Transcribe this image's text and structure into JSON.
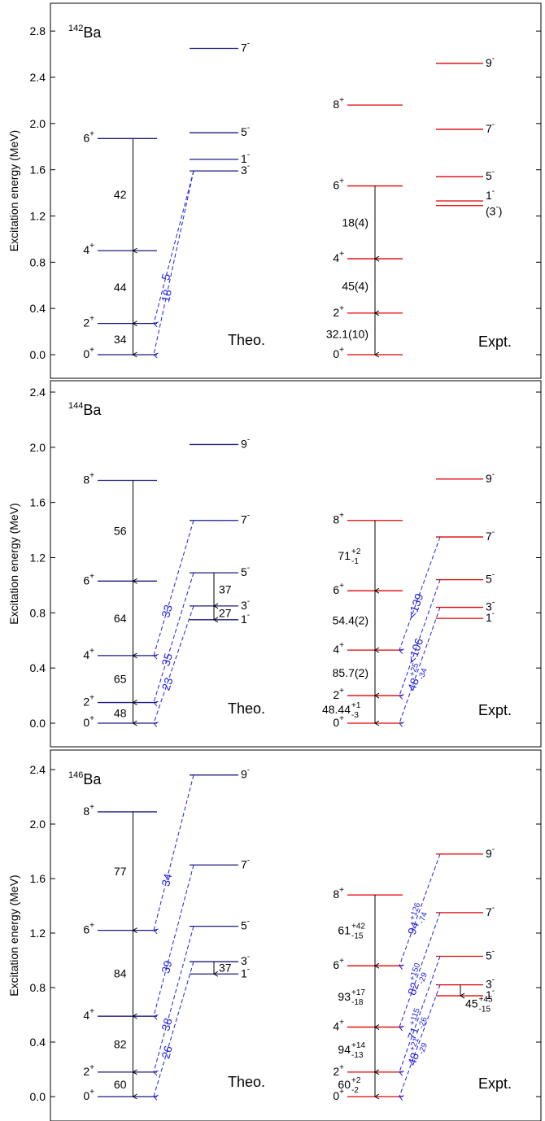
{
  "colors": {
    "theo": "#1a1a80",
    "expt": "#e00000",
    "e1": "#1f1fe0",
    "e2": "#000000",
    "frame": "#000000"
  },
  "chart_data": [
    {
      "type": "level-scheme",
      "nucleus": {
        "mass": "142",
        "symbol": "Ba"
      },
      "ylabel": "Excitation energy (MeV)",
      "ylim": [
        -0.12,
        2.98
      ],
      "yticks": [
        "0.0",
        "0.4",
        "0.8",
        "1.2",
        "1.6",
        "2.0",
        "2.4",
        "2.8"
      ],
      "ytick_values": [
        0.0,
        0.4,
        0.8,
        1.2,
        1.6,
        2.0,
        2.4,
        2.8
      ],
      "theo_label": "Theo.",
      "expt_label": "Expt.",
      "theo": {
        "positive": [
          {
            "E": 0.0,
            "J": "0",
            "p": "+"
          },
          {
            "E": 0.27,
            "J": "2",
            "p": "+"
          },
          {
            "E": 0.9,
            "J": "4",
            "p": "+"
          },
          {
            "E": 1.87,
            "J": "6",
            "p": "+"
          }
        ],
        "negative": [
          {
            "E": 1.59,
            "J": "3",
            "p": "-"
          },
          {
            "E": 1.69,
            "J": "1",
            "p": "-"
          },
          {
            "E": 1.92,
            "J": "5",
            "p": "-"
          },
          {
            "E": 2.65,
            "J": "7",
            "p": "-"
          }
        ],
        "e2": [
          {
            "from": 0.27,
            "to": 0.0,
            "label": "34"
          },
          {
            "from": 0.9,
            "to": 0.27,
            "label": "44"
          },
          {
            "from": 1.87,
            "to": 0.9,
            "label": "42"
          }
        ],
        "e1": [
          {
            "from": 1.59,
            "to": 0.27,
            "label": "5"
          },
          {
            "from": 1.59,
            "to": 0.0,
            "label": "18"
          }
        ],
        "e2neg": []
      },
      "expt": {
        "positive": [
          {
            "E": 0.0,
            "J": "0",
            "p": "+"
          },
          {
            "E": 0.36,
            "J": "2",
            "p": "+"
          },
          {
            "E": 0.83,
            "J": "4",
            "p": "+"
          },
          {
            "E": 1.46,
            "J": "6",
            "p": "+"
          },
          {
            "E": 2.16,
            "J": "8",
            "p": "+"
          }
        ],
        "negative": [
          {
            "E": 1.29,
            "J": "(3",
            "p": "-",
            "suffix": ")"
          },
          {
            "E": 1.33,
            "J": "1",
            "p": "-"
          },
          {
            "E": 1.54,
            "J": "5",
            "p": "-"
          },
          {
            "E": 1.95,
            "J": "7",
            "p": "-"
          },
          {
            "E": 2.52,
            "J": "9",
            "p": "-"
          }
        ],
        "e2": [
          {
            "from": 0.36,
            "to": 0.0,
            "label": "32.1(10)"
          },
          {
            "from": 0.83,
            "to": 0.36,
            "label": "45(4)"
          },
          {
            "from": 1.46,
            "to": 0.83,
            "label": "18(4)"
          }
        ],
        "e1": [],
        "e2neg": []
      }
    },
    {
      "type": "level-scheme",
      "nucleus": {
        "mass": "144",
        "symbol": "Ba"
      },
      "ylabel": "Excitation energy (MeV)",
      "ylim": [
        -0.13,
        2.48
      ],
      "yticks": [
        "0.0",
        "0.4",
        "0.8",
        "1.2",
        "1.6",
        "2.0",
        "2.4"
      ],
      "ytick_values": [
        0.0,
        0.4,
        0.8,
        1.2,
        1.6,
        2.0,
        2.4
      ],
      "theo_label": "Theo.",
      "expt_label": "Expt.",
      "theo": {
        "positive": [
          {
            "E": 0.0,
            "J": "0",
            "p": "+"
          },
          {
            "E": 0.15,
            "J": "2",
            "p": "+"
          },
          {
            "E": 0.49,
            "J": "4",
            "p": "+"
          },
          {
            "E": 1.03,
            "J": "6",
            "p": "+"
          },
          {
            "E": 1.76,
            "J": "8",
            "p": "+"
          }
        ],
        "negative": [
          {
            "E": 0.75,
            "J": "1",
            "p": "-"
          },
          {
            "E": 0.85,
            "J": "3",
            "p": "-"
          },
          {
            "E": 1.09,
            "J": "5",
            "p": "-"
          },
          {
            "E": 1.47,
            "J": "7",
            "p": "-"
          },
          {
            "E": 2.02,
            "J": "9",
            "p": "-"
          }
        ],
        "e2": [
          {
            "from": 0.15,
            "to": 0.0,
            "label": "48"
          },
          {
            "from": 0.49,
            "to": 0.15,
            "label": "65"
          },
          {
            "from": 1.03,
            "to": 0.49,
            "label": "64"
          },
          {
            "from": 1.76,
            "to": 1.03,
            "label": "56"
          }
        ],
        "e1": [
          {
            "from": 1.47,
            "to": 0.49,
            "label": "33"
          },
          {
            "from": 1.09,
            "to": 0.15,
            "label": "35"
          },
          {
            "from": 0.85,
            "to": 0.0,
            "label": "23"
          }
        ],
        "e2neg": [
          {
            "from": 1.09,
            "to": 0.85,
            "label": "37"
          },
          {
            "from": 0.85,
            "to": 0.75,
            "label": "27"
          }
        ]
      },
      "expt": {
        "positive": [
          {
            "E": 0.0,
            "J": "0",
            "p": "+"
          },
          {
            "E": 0.2,
            "J": "2",
            "p": "+"
          },
          {
            "E": 0.53,
            "J": "4",
            "p": "+"
          },
          {
            "E": 0.96,
            "J": "6",
            "p": "+"
          },
          {
            "E": 1.47,
            "J": "8",
            "p": "+"
          }
        ],
        "negative": [
          {
            "E": 0.76,
            "J": "1",
            "p": "-"
          },
          {
            "E": 0.84,
            "J": "3",
            "p": "-"
          },
          {
            "E": 1.04,
            "J": "5",
            "p": "-"
          },
          {
            "E": 1.35,
            "J": "7",
            "p": "-"
          },
          {
            "E": 1.77,
            "J": "9",
            "p": "-"
          }
        ],
        "e2": [
          {
            "from": 0.2,
            "to": 0.0,
            "label": "48.44",
            "sup": "+1",
            "sub": "-3"
          },
          {
            "from": 0.53,
            "to": 0.2,
            "label": "85.7(2)"
          },
          {
            "from": 0.96,
            "to": 0.53,
            "label": "54.4(2)"
          },
          {
            "from": 1.47,
            "to": 0.96,
            "label": "71",
            "sup": "+2",
            "sub": "-1"
          }
        ],
        "e1": [
          {
            "from": 1.35,
            "to": 0.53,
            "label": "<139"
          },
          {
            "from": 1.04,
            "to": 0.2,
            "label": "<106"
          },
          {
            "from": 0.84,
            "to": 0.0,
            "label": "48",
            "sup": "+25",
            "sub": "-34"
          }
        ],
        "e2neg": []
      }
    },
    {
      "type": "level-scheme",
      "nucleus": {
        "mass": "146",
        "symbol": "Ba"
      },
      "ylabel": "Excitation energy (MeV)",
      "ylim": [
        -0.1,
        2.48
      ],
      "yticks": [
        "0.0",
        "0.4",
        "0.8",
        "1.2",
        "1.6",
        "2.0",
        "2.4"
      ],
      "ytick_values": [
        0.0,
        0.4,
        0.8,
        1.2,
        1.6,
        2.0,
        2.4
      ],
      "theo_label": "Theo.",
      "expt_label": "Expt.",
      "theo": {
        "positive": [
          {
            "E": 0.0,
            "J": "0",
            "p": "+"
          },
          {
            "E": 0.18,
            "J": "2",
            "p": "+"
          },
          {
            "E": 0.59,
            "J": "4",
            "p": "+"
          },
          {
            "E": 1.22,
            "J": "6",
            "p": "+"
          },
          {
            "E": 2.09,
            "J": "8",
            "p": "+"
          }
        ],
        "negative": [
          {
            "E": 0.9,
            "J": "1",
            "p": "-"
          },
          {
            "E": 0.99,
            "J": "3",
            "p": "-"
          },
          {
            "E": 1.25,
            "J": "5",
            "p": "-"
          },
          {
            "E": 1.7,
            "J": "7",
            "p": "-"
          },
          {
            "E": 2.36,
            "J": "9",
            "p": "-"
          }
        ],
        "e2": [
          {
            "from": 0.18,
            "to": 0.0,
            "label": "60"
          },
          {
            "from": 0.59,
            "to": 0.18,
            "label": "82"
          },
          {
            "from": 1.22,
            "to": 0.59,
            "label": "84"
          },
          {
            "from": 2.09,
            "to": 1.22,
            "label": "77"
          }
        ],
        "e1": [
          {
            "from": 2.36,
            "to": 1.22,
            "label": "34"
          },
          {
            "from": 1.7,
            "to": 0.59,
            "label": "39"
          },
          {
            "from": 1.25,
            "to": 0.18,
            "label": "38"
          },
          {
            "from": 0.99,
            "to": 0.0,
            "label": "26"
          }
        ],
        "e2neg": [
          {
            "from": 0.99,
            "to": 0.9,
            "label": "37"
          }
        ]
      },
      "expt": {
        "positive": [
          {
            "E": 0.0,
            "J": "0",
            "p": "+"
          },
          {
            "E": 0.18,
            "J": "2",
            "p": "+"
          },
          {
            "E": 0.51,
            "J": "4",
            "p": "+"
          },
          {
            "E": 0.96,
            "J": "6",
            "p": "+"
          },
          {
            "E": 1.48,
            "J": "8",
            "p": "+"
          }
        ],
        "negative": [
          {
            "E": 0.74,
            "J": "1",
            "p": "-"
          },
          {
            "E": 0.82,
            "J": "3",
            "p": "-"
          },
          {
            "E": 1.03,
            "J": "5",
            "p": "-"
          },
          {
            "E": 1.35,
            "J": "7",
            "p": "-"
          },
          {
            "E": 1.78,
            "J": "9",
            "p": "-"
          }
        ],
        "e2": [
          {
            "from": 0.18,
            "to": 0.0,
            "label": "60",
            "sup": "+2",
            "sub": "-2"
          },
          {
            "from": 0.51,
            "to": 0.18,
            "label": "94",
            "sup": "+14",
            "sub": "-13"
          },
          {
            "from": 0.96,
            "to": 0.51,
            "label": "93",
            "sup": "+17",
            "sub": "-18"
          },
          {
            "from": 1.48,
            "to": 0.96,
            "label": "61",
            "sup": "+42",
            "sub": "-15"
          }
        ],
        "e1": [
          {
            "from": 1.78,
            "to": 0.96,
            "label": "94",
            "sup": "+126",
            "sub": "-74"
          },
          {
            "from": 1.35,
            "to": 0.51,
            "label": "82",
            "sup": "+150",
            "sub": "-29"
          },
          {
            "from": 1.03,
            "to": 0.18,
            "label": "71",
            "sup": "+115",
            "sub": "-26"
          },
          {
            "from": 0.82,
            "to": 0.0,
            "label": "48",
            "sup": "+21",
            "sub": "-29"
          }
        ],
        "e2neg": [
          {
            "from": 0.82,
            "to": 0.74,
            "label": "45",
            "sup": "+45",
            "sub": "-15"
          }
        ]
      }
    }
  ]
}
